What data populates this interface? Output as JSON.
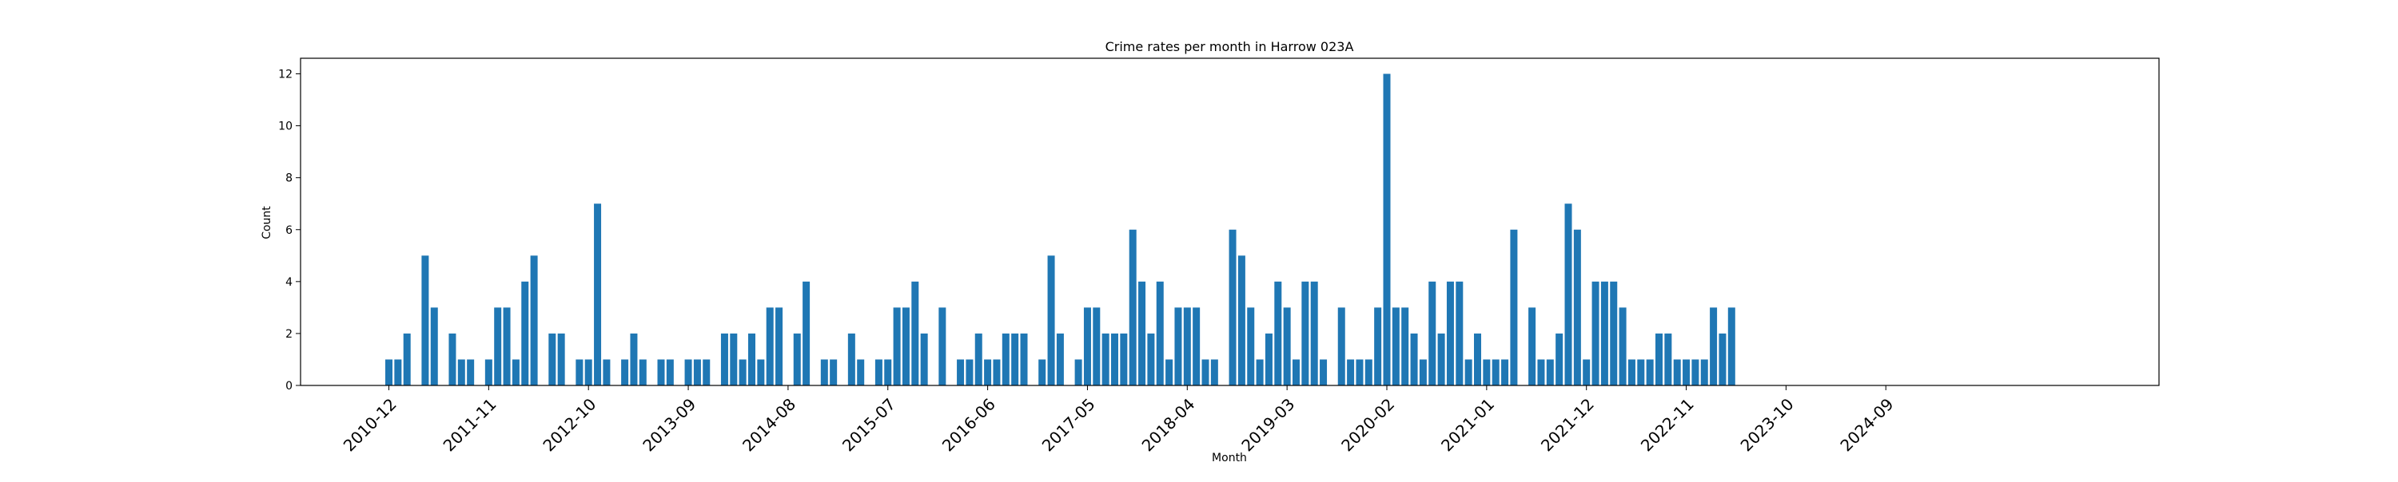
{
  "chart_data": {
    "type": "bar",
    "title": "Crime rates per month in Harrow 023A",
    "xlabel": "Month",
    "ylabel": "Count",
    "ylim": [
      0,
      12.6
    ],
    "y_ticks": [
      0,
      2,
      4,
      6,
      8,
      10,
      12
    ],
    "x_tick_labels": [
      "2010-12",
      "2011-11",
      "2012-10",
      "2013-09",
      "2014-08",
      "2015-07",
      "2016-06",
      "2017-05",
      "2018-04",
      "2019-03",
      "2020-02",
      "2021-01",
      "2021-12",
      "2022-11",
      "2023-10",
      "2024-09"
    ],
    "bar_color": "#1f77b4",
    "grid": false,
    "series": [
      {
        "values": [
          1,
          1,
          2,
          0,
          5,
          3,
          0,
          2,
          1,
          1,
          0,
          1,
          3,
          3,
          1,
          4,
          5,
          0,
          2,
          2,
          0,
          1,
          1,
          7,
          1,
          0,
          1,
          2,
          1,
          0,
          1,
          1,
          0,
          1,
          1,
          1,
          0,
          2,
          2,
          1,
          2,
          1,
          3,
          3,
          0,
          2,
          4,
          0,
          1,
          1,
          0,
          2,
          1,
          0,
          1,
          1,
          3,
          3,
          4,
          2,
          0,
          3,
          0,
          1,
          1,
          2,
          1,
          1,
          2,
          2,
          2,
          0,
          1,
          5,
          2,
          0,
          1,
          3,
          3,
          2,
          2,
          2,
          6,
          4,
          2,
          4,
          1,
          3,
          3,
          3,
          1,
          1,
          0,
          6,
          5,
          3,
          1,
          2,
          4,
          3,
          1,
          4,
          4,
          1,
          0,
          3,
          1,
          1,
          1,
          3,
          12,
          3,
          3,
          2,
          1,
          4,
          2,
          4,
          4,
          1,
          2,
          1,
          1,
          1,
          6,
          0,
          3,
          1,
          1,
          2,
          7,
          6,
          1,
          4,
          4,
          4,
          3,
          1,
          1,
          1,
          2,
          2,
          1,
          1,
          1,
          1,
          3,
          2,
          3
        ]
      }
    ]
  }
}
